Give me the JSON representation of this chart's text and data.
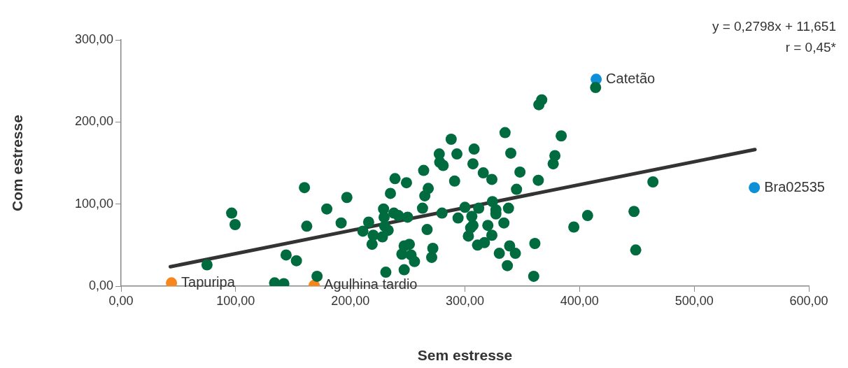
{
  "chart_data": {
    "type": "scatter",
    "xlabel": "Sem estresse",
    "ylabel": "Com estresse",
    "annotations": [
      "y = 0,2798x + 11,651",
      "r = 0,45*"
    ],
    "xlim": [
      0,
      600
    ],
    "ylim": [
      0,
      300
    ],
    "xticks": [
      {
        "value": 0,
        "label": "0,00"
      },
      {
        "value": 100,
        "label": "100,00"
      },
      {
        "value": 200,
        "label": "200,00"
      },
      {
        "value": 300,
        "label": "300,00"
      },
      {
        "value": 400,
        "label": "400,00"
      },
      {
        "value": 500,
        "label": "500,00"
      },
      {
        "value": 600,
        "label": "600,00"
      }
    ],
    "yticks": [
      {
        "value": 0,
        "label": "0,00"
      },
      {
        "value": 100,
        "label": "100,00"
      },
      {
        "value": 200,
        "label": "200,00"
      },
      {
        "value": 300,
        "label": "300,00"
      }
    ],
    "grid": false,
    "legend": false,
    "marker": "circle",
    "series": [
      {
        "color": "#006b3f",
        "x": [
          75,
          96.5,
          99.5,
          134,
          142,
          144,
          153,
          160,
          162,
          171,
          179.5,
          192,
          197,
          211,
          216,
          219,
          220,
          228,
          229,
          229.5,
          230,
          231,
          233,
          235,
          238,
          239,
          242,
          245,
          247,
          247,
          249,
          250,
          251.5,
          253,
          256,
          263,
          264,
          265,
          267,
          268,
          271,
          272,
          277.6,
          278,
          280,
          281,
          288,
          291,
          293,
          294,
          300,
          303,
          305,
          306,
          307,
          308,
          307,
          311,
          312,
          316,
          317,
          320,
          323.5,
          324,
          323.5,
          327,
          327,
          330,
          334,
          335,
          337,
          338,
          339,
          340,
          344,
          345,
          348,
          360,
          361,
          364,
          364.5,
          367,
          377,
          378.5,
          384,
          395,
          407,
          414,
          447.5,
          449,
          464
        ],
        "values": [
          26,
          89,
          75,
          4,
          3,
          38,
          31,
          120,
          73,
          12,
          94,
          77,
          108,
          67,
          78,
          51,
          62,
          60,
          94,
          84,
          73,
          17,
          68,
          113,
          89,
          131,
          86,
          39,
          49,
          20,
          126,
          84,
          51,
          38,
          30,
          95,
          141,
          110,
          69,
          119,
          35,
          46,
          161,
          151,
          89,
          147,
          179,
          128,
          161,
          83,
          96,
          61,
          71,
          85,
          149,
          167,
          74,
          50,
          95,
          138,
          53,
          74,
          62,
          103,
          130,
          93,
          88,
          40,
          77,
          187,
          25,
          95,
          49,
          162,
          40,
          118,
          139,
          12,
          52,
          129,
          221,
          227,
          149,
          159,
          183,
          72,
          86,
          242,
          91,
          44,
          127
        ]
      },
      {
        "name": "Tapuripa",
        "color": "#f7861e",
        "x": [
          44
        ],
        "values": [
          4
        ]
      },
      {
        "name": "Agulhina tardio",
        "color": "#f7861e",
        "x": [
          168.5
        ],
        "values": [
          1
        ]
      },
      {
        "name": "Catetão",
        "color": "#0f8fd8",
        "x": [
          414.5
        ],
        "values": [
          252
        ]
      },
      {
        "name": "Bra02535",
        "color": "#0f8fd8",
        "x": [
          552.5
        ],
        "values": [
          120
        ]
      },
      {
        "type": "line",
        "color": "#333333",
        "line_style": "solid",
        "marker": "none",
        "x": [
          43,
          553
        ],
        "values": [
          23.7,
          166.4
        ]
      }
    ]
  }
}
